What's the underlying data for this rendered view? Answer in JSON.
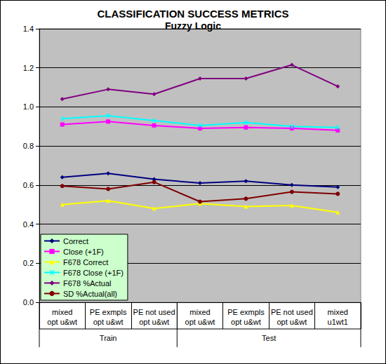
{
  "chart_data": {
    "type": "line",
    "title": "CLASSIFICATION SUCCESS METRICS",
    "subtitle": "Fuzzy Logic",
    "categories": [
      "mixed\nopt u&wt",
      "PE exmpls\nopt u&wt",
      "PE not used\nopt u&wt",
      "mixed\nopt u&wt",
      "PE exmpls\nopt u&wt",
      "PE not used\nopt u&wt",
      "mixed\nu1wt1"
    ],
    "category_groups": [
      {
        "name": "Train",
        "count": 3
      },
      {
        "name": "Test",
        "count": 4
      }
    ],
    "series": [
      {
        "name": "Correct",
        "color": "#000080",
        "marker": "diamond",
        "values": [
          0.64,
          0.66,
          0.63,
          0.61,
          0.62,
          0.6,
          0.59
        ]
      },
      {
        "name": "Close (+1F)",
        "color": "#ff00ff",
        "marker": "square",
        "values": [
          0.91,
          0.925,
          0.905,
          0.89,
          0.895,
          0.89,
          0.88
        ]
      },
      {
        "name": "F678 Correct",
        "color": "#ffff00",
        "marker": "triangle",
        "values": [
          0.5,
          0.52,
          0.48,
          0.505,
          0.49,
          0.495,
          0.46
        ]
      },
      {
        "name": "F678 Close (+1F)",
        "color": "#00ffff",
        "marker": "x",
        "values": [
          0.94,
          0.955,
          0.93,
          0.905,
          0.92,
          0.9,
          0.895
        ]
      },
      {
        "name": "F678 %Actual",
        "color": "#800080",
        "marker": "diamond",
        "values": [
          1.04,
          1.09,
          1.065,
          1.145,
          1.145,
          1.215,
          1.105
        ]
      },
      {
        "name": "SD %Actual(all)",
        "color": "#800000",
        "marker": "circle",
        "values": [
          0.595,
          0.58,
          0.615,
          0.515,
          0.53,
          0.565,
          0.555
        ]
      }
    ],
    "ylim": [
      0,
      1.4
    ],
    "yticks": [
      {
        "value": 0,
        "label": "0.0"
      },
      0.2,
      0.4,
      0.6,
      0.8,
      {
        "value": 1,
        "label": "1.0"
      },
      1.2,
      1.4
    ],
    "grid": true,
    "legend": "bottom-left"
  }
}
